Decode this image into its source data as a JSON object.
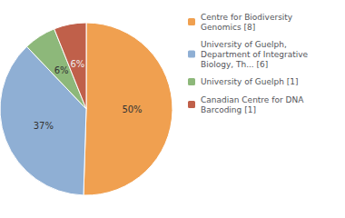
{
  "chart_data": {
    "type": "pie",
    "categories": [
      "Centre for Biodiversity\nGenomics [8]",
      "University of Guelph,\nDepartment of Integrative\nBiology, Th... [6]",
      "University of Guelph [1]",
      "Canadian Centre for DNA\nBarcoding [1]"
    ],
    "values": [
      50,
      37,
      6,
      6
    ],
    "value_labels": [
      "50%",
      "37%",
      "6%",
      "6%"
    ],
    "colors": [
      "#f0a050",
      "#8fafd4",
      "#8db87a",
      "#c0604a"
    ],
    "data_labels": true,
    "legend": "right"
  }
}
